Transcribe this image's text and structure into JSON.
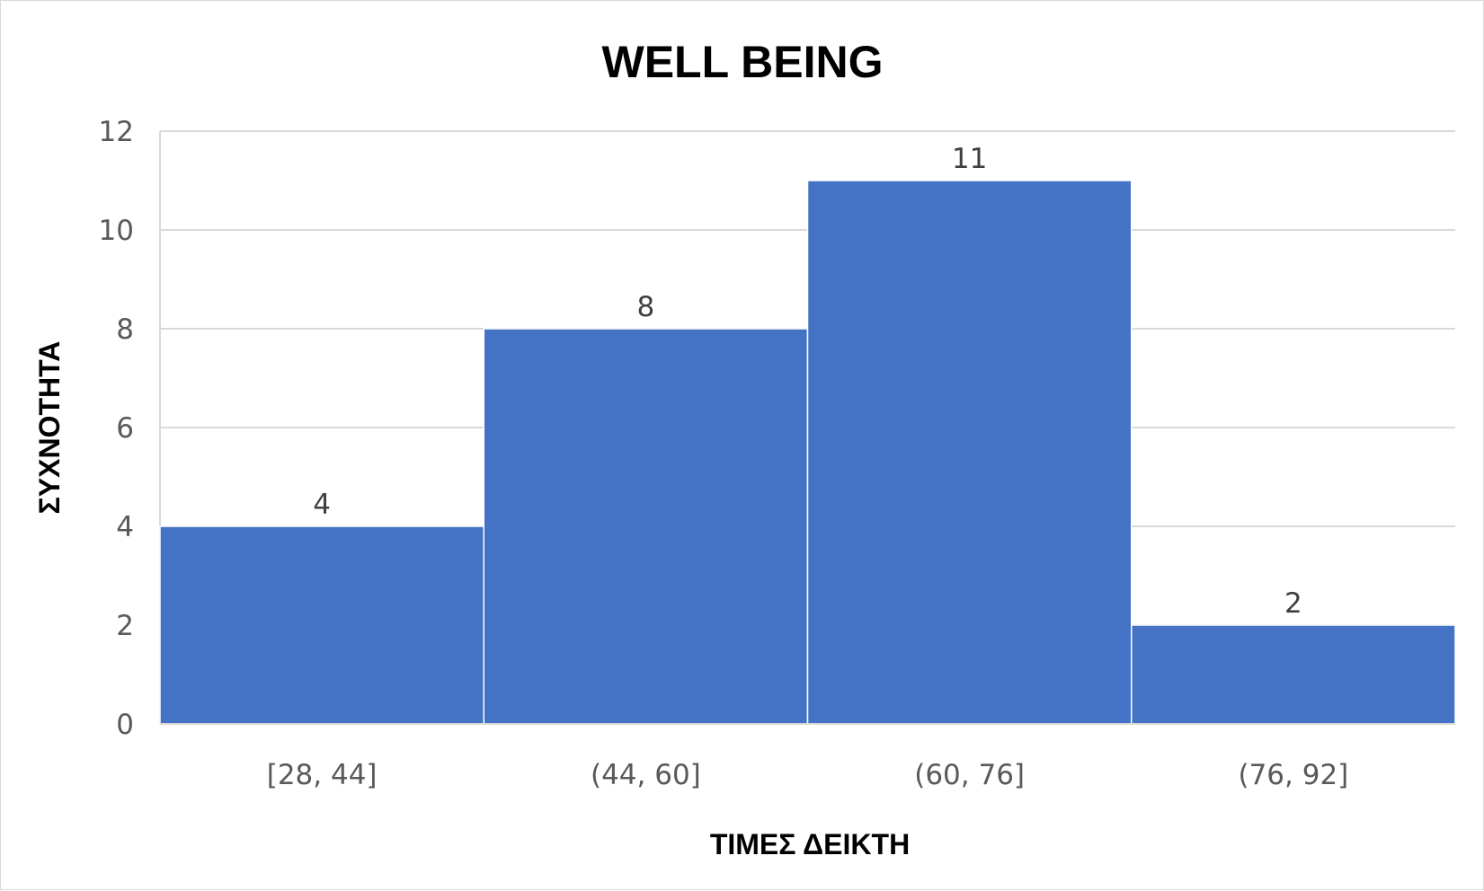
{
  "chart_data": {
    "type": "bar",
    "title": "WELL BEING",
    "xlabel": "ΤΙΜΕΣ ΔΕΙΚΤΗ",
    "ylabel": "ΣΥΧΝΟΤΗΤΑ",
    "categories": [
      "[28, 44]",
      "(44, 60]",
      "(60, 76]",
      "(76, 92]"
    ],
    "values": [
      4,
      8,
      11,
      2
    ],
    "data_labels": [
      "4",
      "8",
      "11",
      "2"
    ],
    "ylim": [
      0,
      12
    ],
    "yticks": [
      0,
      2,
      4,
      6,
      8,
      10,
      12
    ],
    "grid": true,
    "legend": "none",
    "bar_color": "#4472c4",
    "grid_color": "#d9d9d9"
  }
}
